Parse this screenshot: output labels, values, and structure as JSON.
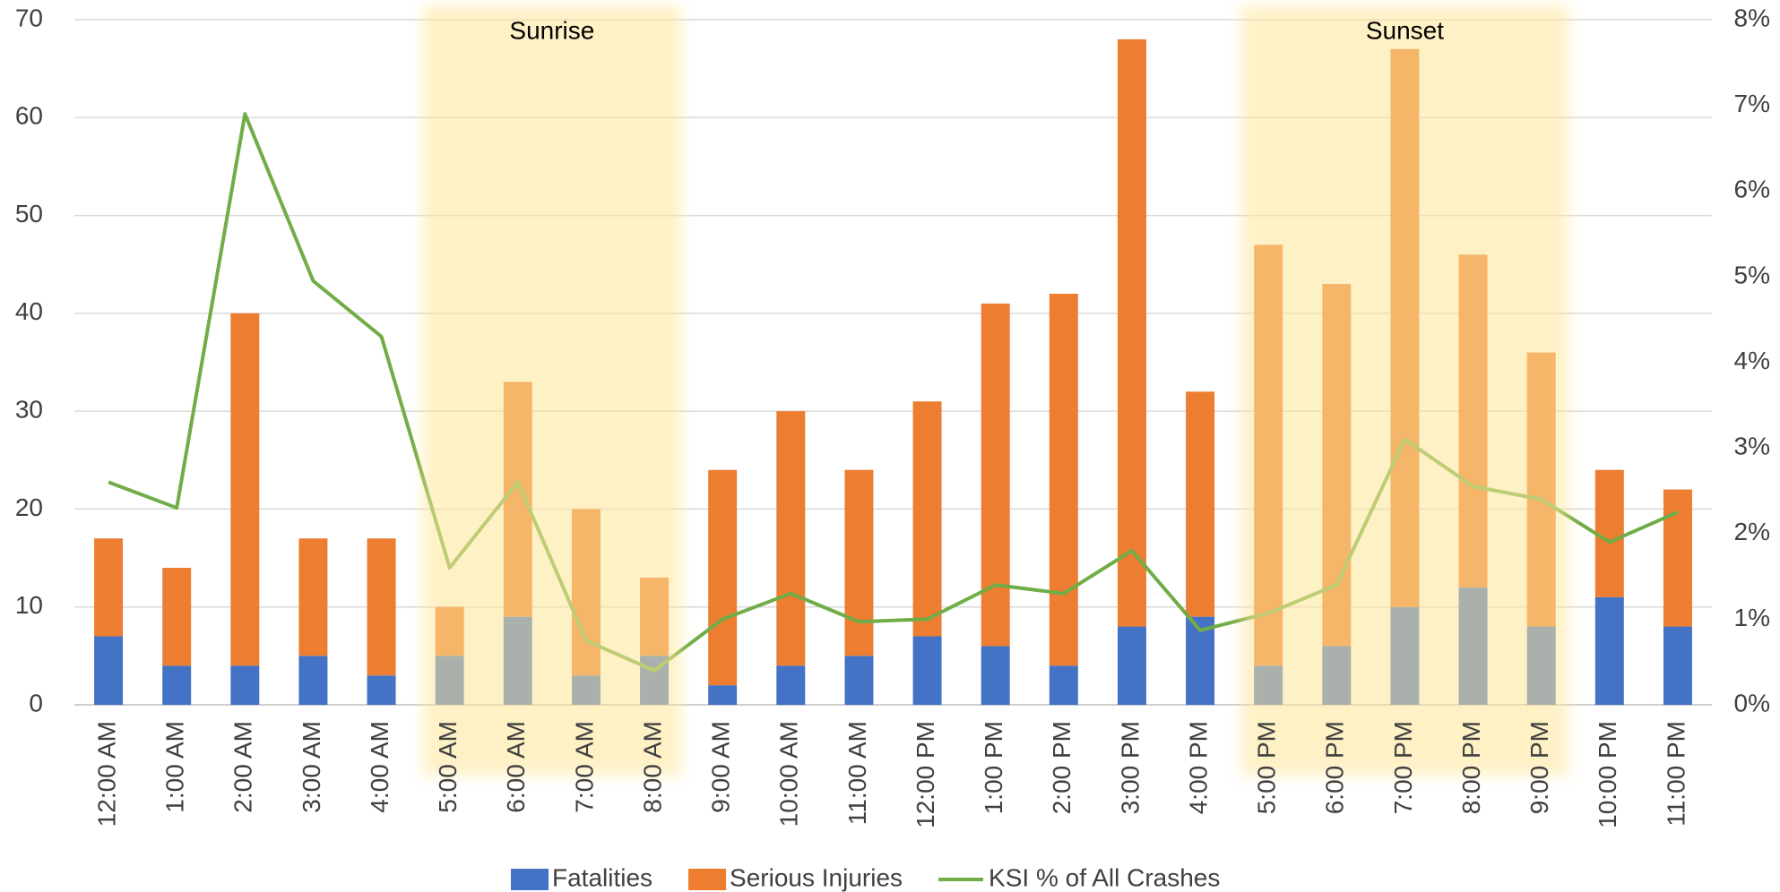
{
  "chart_data": {
    "type": "bar",
    "categories": [
      "12:00 AM",
      "1:00 AM",
      "2:00 AM",
      "3:00 AM",
      "4:00 AM",
      "5:00 AM",
      "6:00 AM",
      "7:00 AM",
      "8:00 AM",
      "9:00 AM",
      "10:00 AM",
      "11:00 AM",
      "12:00 PM",
      "1:00 PM",
      "2:00 PM",
      "3:00 PM",
      "4:00 PM",
      "5:00 PM",
      "6:00 PM",
      "7:00 PM",
      "8:00 PM",
      "9:00 PM",
      "10:00 PM",
      "11:00 PM"
    ],
    "series": [
      {
        "name": "Fatalities",
        "color": "#4472c4",
        "stacked": true,
        "values": [
          7,
          4,
          4,
          5,
          3,
          5,
          9,
          3,
          5,
          2,
          4,
          5,
          7,
          6,
          4,
          8,
          9,
          4,
          6,
          10,
          12,
          8,
          11,
          8
        ]
      },
      {
        "name": "Serious Injuries",
        "color": "#ed7d31",
        "stacked": true,
        "values": [
          10,
          10,
          36,
          12,
          14,
          5,
          24,
          17,
          8,
          22,
          26,
          19,
          24,
          35,
          38,
          60,
          23,
          43,
          37,
          57,
          34,
          28,
          13,
          14
        ]
      },
      {
        "name": "KSI % of All Crashes",
        "color": "#70ad47",
        "type": "line",
        "axis": "y2",
        "values": [
          2.6,
          2.3,
          6.9,
          4.95,
          4.3,
          1.6,
          2.6,
          0.75,
          0.4,
          1.0,
          1.3,
          0.97,
          1.0,
          1.4,
          1.3,
          1.8,
          0.87,
          1.07,
          1.4,
          3.1,
          2.55,
          2.4,
          1.9,
          2.25
        ]
      }
    ],
    "ylim": [
      0,
      70
    ],
    "yticks": [
      0,
      10,
      20,
      30,
      40,
      50,
      60,
      70
    ],
    "y2lim": [
      0,
      8
    ],
    "y2ticks": [
      {
        "value": 0,
        "label": "0%"
      },
      {
        "value": 1,
        "label": "1%"
      },
      {
        "value": 2,
        "label": "2%"
      },
      {
        "value": 3,
        "label": "3%"
      },
      {
        "value": 4,
        "label": "4%"
      },
      {
        "value": 5,
        "label": "5%"
      },
      {
        "value": 6,
        "label": "6%"
      },
      {
        "value": 7,
        "label": "7%"
      },
      {
        "value": 8,
        "label": "8%"
      }
    ],
    "grid": true,
    "legend": "bottom",
    "annotations": [
      {
        "text": "Sunrise",
        "from": "5:00 AM",
        "to": "8:00 AM",
        "color": "#ffe699"
      },
      {
        "text": "Sunset",
        "from": "5:00 PM",
        "to": "9:00 PM",
        "color": "#ffe699"
      }
    ]
  }
}
